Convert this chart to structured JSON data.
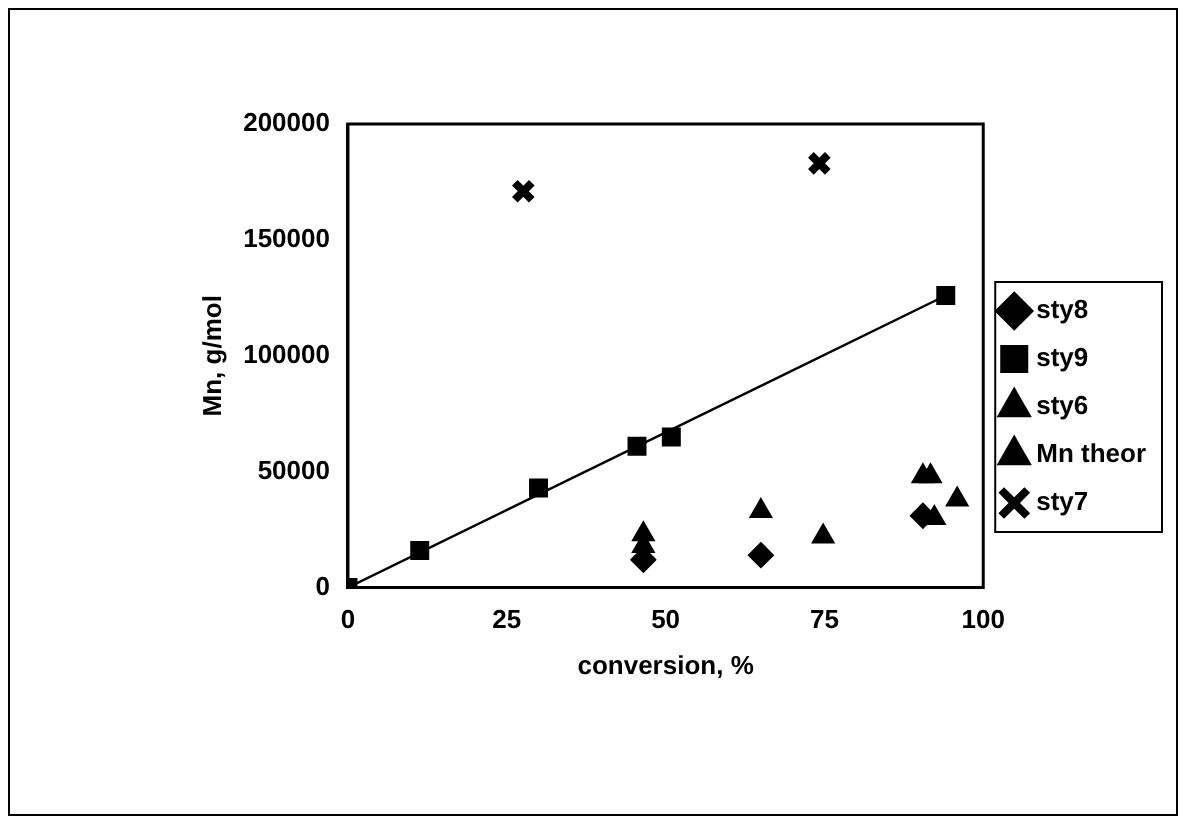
{
  "chart_data": {
    "type": "scatter",
    "xlabel": "conversion, %",
    "ylabel": "Mn, g/mol",
    "xlim": [
      0,
      100
    ],
    "xticks": [
      0,
      25,
      50,
      75,
      100
    ],
    "ylim": [
      0,
      200000
    ],
    "yticks": [
      0,
      50000,
      100000,
      150000,
      200000
    ],
    "grid": false,
    "legend": "right",
    "series": [
      {
        "name": "sty8",
        "color": "#000000",
        "marker": "diamond",
        "x": [
          46.5,
          65,
          90.5
        ],
        "values": [
          12000,
          14000,
          31000
        ]
      },
      {
        "name": "sty9",
        "color": "#000000",
        "marker": "square",
        "x": [
          0,
          11.3,
          30,
          45.5,
          50.9,
          94.1
        ],
        "values": [
          0,
          16000,
          43000,
          61000,
          65000,
          126000
        ]
      },
      {
        "name": "sty6",
        "color": "#000000",
        "marker": "triangle",
        "x": [
          46.5,
          65,
          74.8,
          90.5,
          95.9
        ],
        "values": [
          23000,
          33000,
          22000,
          48000,
          38000
        ]
      },
      {
        "name": "Mn theor",
        "color": "#000000",
        "marker": "triangle",
        "x": [
          46.5,
          91.7,
          92.3
        ],
        "values": [
          18000,
          48000,
          30000
        ]
      },
      {
        "name": "sty7",
        "color": "#000000",
        "marker": "cross",
        "x": [
          27.6,
          74.2
        ],
        "values": [
          171000,
          183000
        ]
      },
      {
        "type": "line",
        "color": "#000000",
        "marker": "none",
        "x": [
          0,
          94.1
        ],
        "values": [
          0,
          126000
        ]
      }
    ]
  }
}
